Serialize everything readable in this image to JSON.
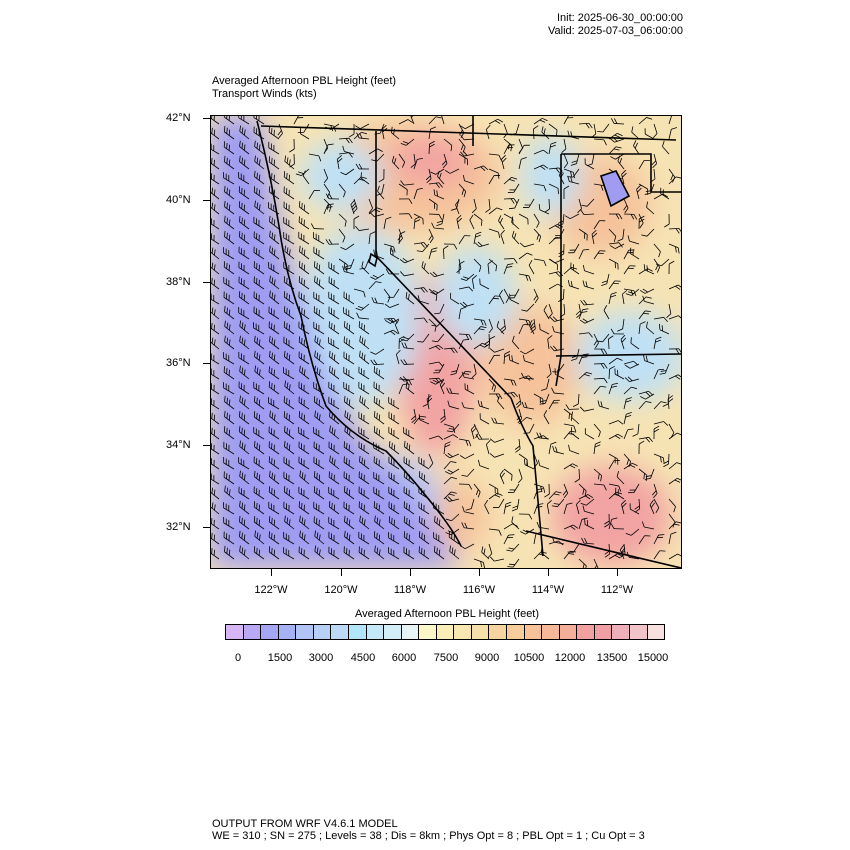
{
  "header": {
    "init": "Init: 2025-06-30_00:00:00",
    "valid": "Valid: 2025-07-03_06:00:00"
  },
  "title": "Averaged Afternoon PBL Height   (feet)",
  "subtitle": "Transport Winds   (kts)",
  "map": {
    "lat_labels": [
      "42°N",
      "40°N",
      "38°N",
      "36°N",
      "34°N",
      "32°N"
    ],
    "lon_labels": [
      "122°W",
      "120°W",
      "118°W",
      "116°W",
      "114°W",
      "112°W"
    ],
    "colors": {
      "ocean": "#9f9cf2",
      "coast_low": "#b8c8f4",
      "valley": "#bfe0f4",
      "mid": "#f6e3b4",
      "high": "#f5c29b",
      "peak": "#f2a3a3",
      "boundary": "#000000",
      "barb": "#000000"
    }
  },
  "colorbar": {
    "title": "Averaged Afternoon PBL Height  (feet)",
    "labels": [
      "0",
      "1500",
      "3000",
      "4500",
      "6000",
      "7500",
      "9000",
      "10500",
      "12000",
      "13500",
      "15000"
    ],
    "colors": [
      "#d7b6f4",
      "#b9a8f2",
      "#a6a6f4",
      "#a6b2f4",
      "#b2c4f4",
      "#b8d0f6",
      "#bcdaf6",
      "#b4e4f8",
      "#c4e8f8",
      "#d4eef8",
      "#e6f4f6",
      "#fbf7c8",
      "#f9eeb8",
      "#f7e6b0",
      "#f6deaa",
      "#f6d4a2",
      "#f6cc9c",
      "#f6c29a",
      "#f6b898",
      "#f4ae9a",
      "#f2a19f",
      "#f0a0a4",
      "#eeb0b8",
      "#f0c4c8",
      "#f8e0e0"
    ]
  },
  "footer": {
    "line1": "OUTPUT FROM WRF V4.6.1 MODEL",
    "line2": "WE = 310 ; SN = 275 ; Levels = 38 ; Dis = 8km ; Phys Opt = 8 ; PBL Opt = 1 ; Cu Opt = 3"
  }
}
